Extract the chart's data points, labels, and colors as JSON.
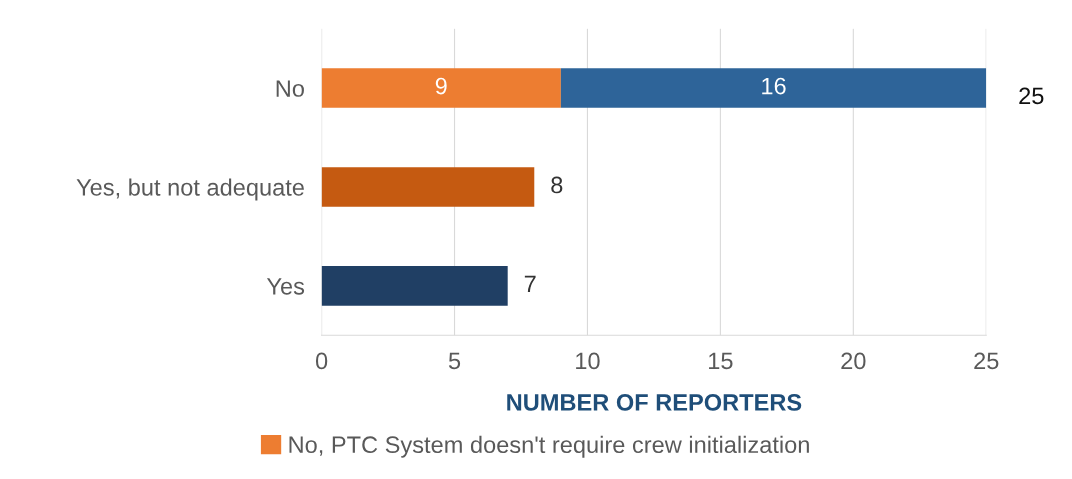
{
  "chart_data": {
    "type": "bar",
    "orientation": "horizontal",
    "stacked": true,
    "categories": [
      "No",
      "Yes, but not adequate",
      "Yes"
    ],
    "series": [
      {
        "name": "No, PTC System doesn't require crew initialization",
        "color": "#ed7d31",
        "values": [
          9,
          null,
          null
        ]
      },
      {
        "colors": [
          "#2e6499",
          "#c55a11",
          "#203f64"
        ],
        "values": [
          16,
          8,
          7
        ]
      }
    ],
    "totals": [
      "25",
      null,
      null
    ],
    "data_labels": true,
    "xlabel": "NUMBER OF REPORTERS",
    "xlim": [
      0,
      25
    ],
    "xticks": [
      0,
      5,
      10,
      15,
      20,
      25
    ],
    "grid": "x",
    "legend": "bottom"
  }
}
